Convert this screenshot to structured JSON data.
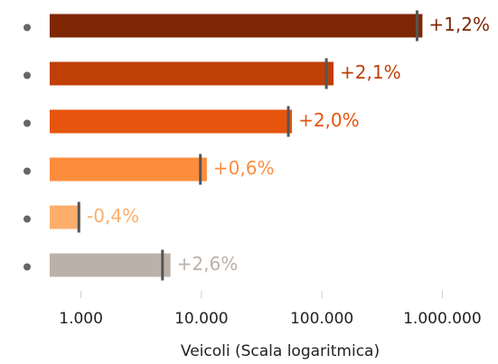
{
  "chart_data": {
    "type": "bar",
    "orientation": "horizontal",
    "x_label": "Veicoli (Scala logaritmica)",
    "xscale": "log",
    "xlim": [
      550,
      2900000
    ],
    "xticks": [
      {
        "value": 1000,
        "label": "1.000"
      },
      {
        "value": 10000,
        "label": "10.000"
      },
      {
        "value": 100000,
        "label": "100.000"
      },
      {
        "value": 1000000,
        "label": "1.000.000"
      }
    ],
    "categories": [
      null,
      null,
      null,
      null,
      null,
      null
    ],
    "values": [
      684000,
      125000,
      56500,
      11100,
      990,
      5540
    ],
    "markers": [
      617000,
      109000,
      52700,
      9800,
      960,
      4750
    ],
    "value_labels": [
      "+1,2%",
      "+2,1%",
      "+2,0%",
      "+0,6%",
      "-0,4%",
      "+2,6%"
    ],
    "colors": [
      "#7f2704",
      "#bf3f06",
      "#e6550d",
      "#fd8d3c",
      "#fdae6b",
      "#bcb1a8"
    ],
    "marker_color": "#555555"
  }
}
